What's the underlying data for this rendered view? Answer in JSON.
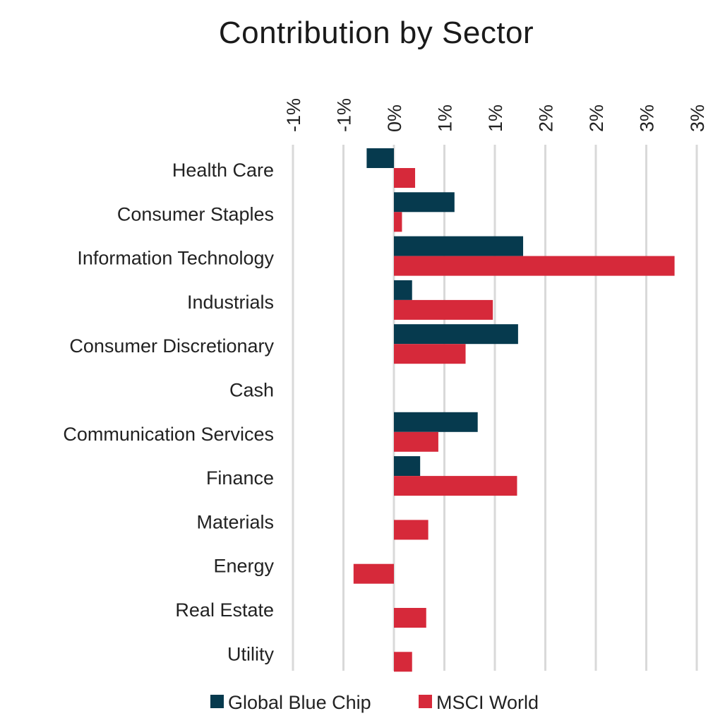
{
  "colors": {
    "global_blue_chip": "#063a4e",
    "msci_world": "#d6293a",
    "grid": "#d9d9d9"
  },
  "chart_data": {
    "type": "bar",
    "orientation": "horizontal",
    "title": "Contribution by Sector",
    "xlabel": "",
    "ylabel": "",
    "x_axis_position": "top",
    "x_tick_values": [
      -1.0,
      -0.5,
      0.0,
      0.5,
      1.0,
      1.5,
      2.0,
      2.5,
      3.0
    ],
    "x_tick_labels": [
      "-1%",
      "-1%",
      "0%",
      "1%",
      "1%",
      "2%",
      "2%",
      "3%",
      "3%"
    ],
    "xlim": [
      -1.0,
      3.0
    ],
    "grid": true,
    "legend_position": "bottom",
    "categories": [
      "Health Care",
      "Consumer Staples",
      "Information Technology",
      "Industrials",
      "Consumer Discretionary",
      "Cash",
      "Communication Services",
      "Finance",
      "Materials",
      "Energy",
      "Real Estate",
      "Utility"
    ],
    "series": [
      {
        "name": "Global Blue Chip",
        "color": "#063a4e",
        "values": [
          -0.27,
          0.6,
          1.28,
          0.18,
          1.23,
          0.0,
          0.83,
          0.26,
          0.0,
          0.0,
          0.0,
          0.0
        ]
      },
      {
        "name": "MSCI World",
        "color": "#d6293a",
        "values": [
          0.21,
          0.08,
          2.78,
          0.98,
          0.71,
          0.0,
          0.44,
          1.22,
          0.34,
          -0.4,
          0.32,
          0.18
        ]
      }
    ]
  }
}
